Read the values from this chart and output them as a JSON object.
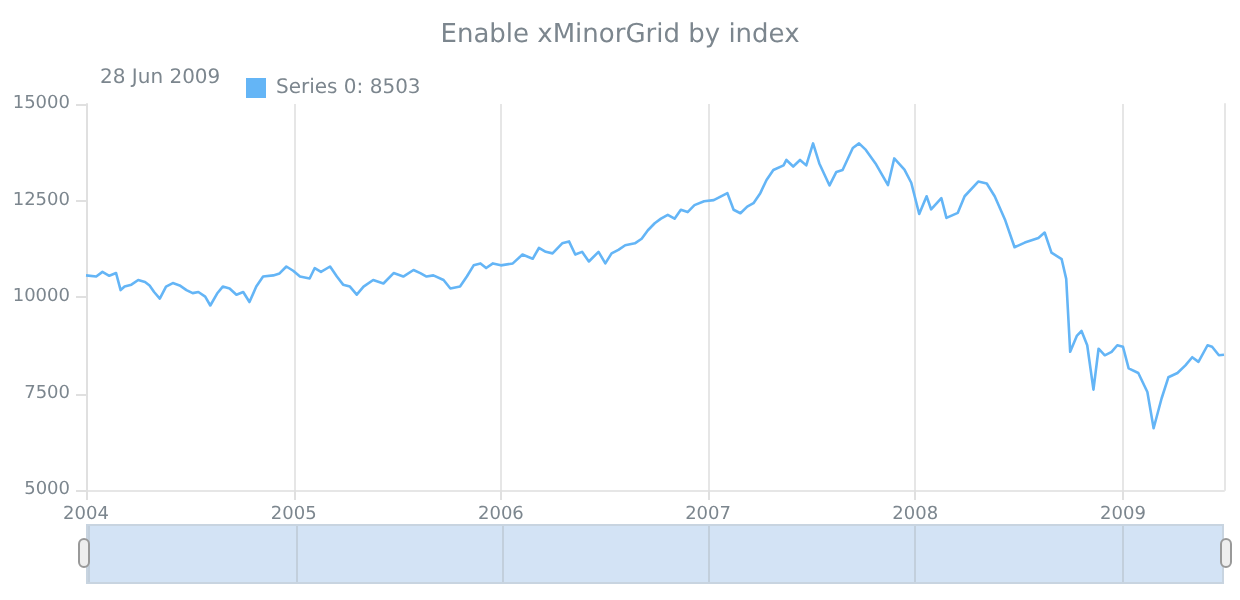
{
  "chart_data": {
    "type": "line",
    "title": "Enable xMinorGrid by index",
    "annotations": [
      "28 Jun 2009"
    ],
    "legend": "top left",
    "grid": "x",
    "marker": "none",
    "xlim": [
      "2004-01-01",
      "2009-06-28"
    ],
    "xticks": [
      "2004",
      "2005",
      "2006",
      "2007",
      "2008",
      "2009"
    ],
    "ylim": [
      5000,
      15000
    ],
    "yticks": [
      5000,
      7500,
      10000,
      12500,
      15000
    ],
    "series": [
      {
        "name": "Series 0: 8503",
        "color": "#64b5f6",
        "x": [
          "2004-01-01",
          "2004-01-19",
          "2004-01-30",
          "2004-02-11",
          "2004-02-23",
          "2004-03-02",
          "2004-03-09",
          "2004-03-21",
          "2004-04-02",
          "2004-04-14",
          "2004-04-22",
          "2004-04-30",
          "2004-05-10",
          "2004-05-21",
          "2004-06-02",
          "2004-06-14",
          "2004-06-26",
          "2004-07-07",
          "2004-07-17",
          "2004-07-29",
          "2004-08-07",
          "2004-08-19",
          "2004-08-29",
          "2004-09-10",
          "2004-09-22",
          "2004-10-04",
          "2004-10-15",
          "2004-10-27",
          "2004-11-08",
          "2004-11-26",
          "2004-12-07",
          "2004-12-19",
          "2004-12-31",
          "2005-01-12",
          "2005-01-29",
          "2005-02-07",
          "2005-02-18",
          "2005-03-06",
          "2005-03-18",
          "2005-03-29",
          "2005-04-10",
          "2005-04-22",
          "2005-05-04",
          "2005-05-21",
          "2005-06-08",
          "2005-06-26",
          "2005-07-13",
          "2005-07-31",
          "2005-08-12",
          "2005-08-23",
          "2005-09-04",
          "2005-09-22",
          "2005-10-04",
          "2005-10-21",
          "2005-11-02",
          "2005-11-14",
          "2005-11-26",
          "2005-12-06",
          "2005-12-18",
          "2006-01-01",
          "2006-01-22",
          "2006-02-08",
          "2006-02-26",
          "2006-03-09",
          "2006-03-21",
          "2006-04-02",
          "2006-04-19",
          "2006-05-01",
          "2006-05-12",
          "2006-05-24",
          "2006-06-05",
          "2006-06-22",
          "2006-07-04",
          "2006-07-15",
          "2006-07-27",
          "2006-08-08",
          "2006-08-25",
          "2006-09-06",
          "2006-09-17",
          "2006-09-29",
          "2006-10-10",
          "2006-10-22",
          "2006-11-03",
          "2006-11-14",
          "2006-11-26",
          "2006-12-08",
          "2006-12-25",
          "2007-01-11",
          "2007-01-23",
          "2007-02-04",
          "2007-02-15",
          "2007-02-27",
          "2007-03-11",
          "2007-03-22",
          "2007-04-03",
          "2007-04-14",
          "2007-04-26",
          "2007-05-14",
          "2007-05-19",
          "2007-05-31",
          "2007-06-12",
          "2007-06-23",
          "2007-07-05",
          "2007-07-16",
          "2007-08-03",
          "2007-08-15",
          "2007-08-26",
          "2007-09-13",
          "2007-09-24",
          "2007-10-06",
          "2007-10-23",
          "2007-11-14",
          "2007-11-25",
          "2007-12-13",
          "2007-12-25",
          "2008-01-08",
          "2008-01-21",
          "2008-01-29",
          "2008-02-16",
          "2008-02-25",
          "2008-03-16",
          "2008-03-28",
          "2008-04-21",
          "2008-05-06",
          "2008-05-20",
          "2008-06-07",
          "2008-06-24",
          "2008-07-12",
          "2008-08-05",
          "2008-08-16",
          "2008-08-28",
          "2008-09-15",
          "2008-09-23",
          "2008-09-30",
          "2008-10-12",
          "2008-10-20",
          "2008-10-30",
          "2008-11-10",
          "2008-11-19",
          "2008-11-30",
          "2008-12-12",
          "2008-12-22",
          "2009-01-01",
          "2009-01-11",
          "2009-01-28",
          "2009-02-13",
          "2009-02-24",
          "2009-03-10",
          "2009-03-22",
          "2009-04-07",
          "2009-04-21",
          "2009-05-03",
          "2009-05-14",
          "2009-05-30",
          "2009-06-07",
          "2009-06-19",
          "2009-06-28"
        ],
        "values": [
          10560,
          10530,
          10650,
          10550,
          10620,
          10180,
          10270,
          10320,
          10440,
          10390,
          10300,
          10130,
          9960,
          10270,
          10360,
          10300,
          10180,
          10100,
          10130,
          10010,
          9780,
          10090,
          10270,
          10220,
          10060,
          10130,
          9870,
          10270,
          10530,
          10560,
          10610,
          10790,
          10680,
          10530,
          10480,
          10750,
          10650,
          10790,
          10530,
          10320,
          10270,
          10060,
          10270,
          10440,
          10350,
          10620,
          10530,
          10700,
          10620,
          10530,
          10560,
          10440,
          10220,
          10270,
          10530,
          10820,
          10870,
          10750,
          10870,
          10820,
          10870,
          11100,
          10990,
          11270,
          11170,
          11130,
          11390,
          11440,
          11100,
          11170,
          10920,
          11170,
          10870,
          11130,
          11220,
          11340,
          11390,
          11510,
          11730,
          11910,
          12030,
          12130,
          12030,
          12260,
          12200,
          12380,
          12480,
          12510,
          12600,
          12690,
          12260,
          12170,
          12340,
          12430,
          12690,
          13030,
          13290,
          13410,
          13550,
          13380,
          13550,
          13410,
          13980,
          13460,
          12890,
          13240,
          13290,
          13860,
          13980,
          13810,
          13460,
          12900,
          13590,
          13300,
          12960,
          12150,
          12610,
          12270,
          12560,
          12050,
          12180,
          12610,
          12990,
          12940,
          12610,
          12010,
          11290,
          11410,
          11530,
          11670,
          11150,
          10980,
          10470,
          8580,
          9000,
          9120,
          8750,
          7600,
          8660,
          8490,
          8580,
          8750,
          8710,
          8150,
          8030,
          7540,
          6600,
          7370,
          7920,
          8030,
          8230,
          8440,
          8320,
          8750,
          8710,
          8490,
          8503
        ]
      }
    ]
  }
}
